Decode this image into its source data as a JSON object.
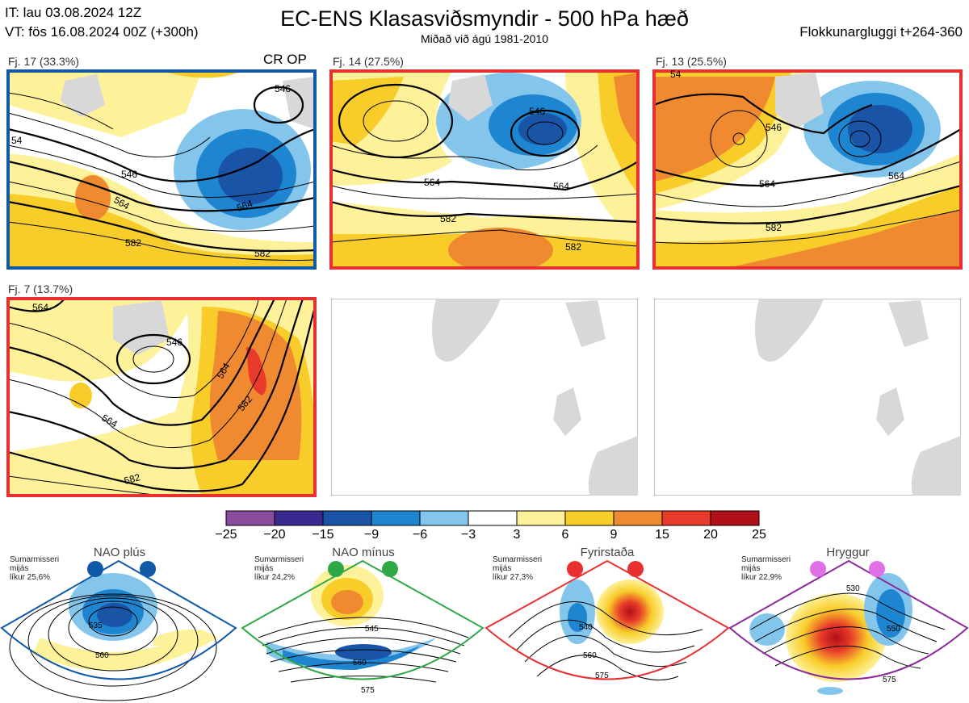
{
  "header": {
    "it_line": "IT: lau 03.08.2024 12Z",
    "vt_line": "VT: fös 16.08.2024 00Z  (+300h)",
    "title": "EC-ENS Klasasviðsmyndir - 500 hPa hæð",
    "subtitle": "Miðað við ágú 1981-2010",
    "window": "Flokkunargluggi t+264-360"
  },
  "clusters": [
    {
      "label": "Fj. 17 (33.3%)",
      "extra": "CR OP",
      "frame_color": "#1058a8",
      "contours": [
        "546",
        "564",
        "582",
        "582",
        "546",
        "564",
        "54"
      ]
    },
    {
      "label": "Fj. 14 (27.5%)",
      "extra": "",
      "frame_color": "#e83030",
      "contours": [
        "546",
        "564",
        "582",
        "582",
        "564"
      ]
    },
    {
      "label": "Fj. 13 (25.5%)",
      "extra": "",
      "frame_color": "#e83030",
      "contours": [
        "546",
        "564",
        "582",
        "564",
        "54"
      ]
    },
    {
      "label": "Fj. 7 (13.7%)",
      "extra": "",
      "frame_color": "#e83030",
      "contours": [
        "564",
        "546",
        "564",
        "582",
        "582",
        "564"
      ]
    }
  ],
  "colorbar": {
    "ticks": [
      "−25",
      "−20",
      "−15",
      "−9",
      "−6",
      "−3",
      "3",
      "6",
      "9",
      "15",
      "20",
      "25"
    ],
    "colors": [
      "#8a4d9e",
      "#3a2a8f",
      "#1a54a6",
      "#1e86d0",
      "#84c5ec",
      "#ffffff",
      "#fdf19a",
      "#f8cd2a",
      "#f08a30",
      "#e83a2a",
      "#b01018"
    ]
  },
  "regimes": [
    {
      "name": "NAO plús",
      "season": "Sumarmisseri",
      "state": "mijás",
      "prob": "líkur 25,6%",
      "color": "#1058a8",
      "dot_color": "#1058a8",
      "contours": [
        "535",
        "560"
      ]
    },
    {
      "name": "NAO mínus",
      "season": "Sumarmisseri",
      "state": "mijás",
      "prob": "líkur 24,2%",
      "color": "#30a848",
      "dot_color": "#30a848",
      "contours": [
        "545",
        "560",
        "575"
      ]
    },
    {
      "name": "Fyrirstaða",
      "season": "Sumarmisseri",
      "state": "mijás",
      "prob": "líkur 27,3%",
      "color": "#e83030",
      "dot_color": "#e83030",
      "contours": [
        "540",
        "560",
        "575"
      ]
    },
    {
      "name": "Hryggur",
      "season": "Sumarmisseri",
      "state": "mijás",
      "prob": "líkur 22,9%",
      "color": "#8a2a9a",
      "dot_color": "#e070e8",
      "contours": [
        "530",
        "550",
        "575"
      ]
    }
  ]
}
